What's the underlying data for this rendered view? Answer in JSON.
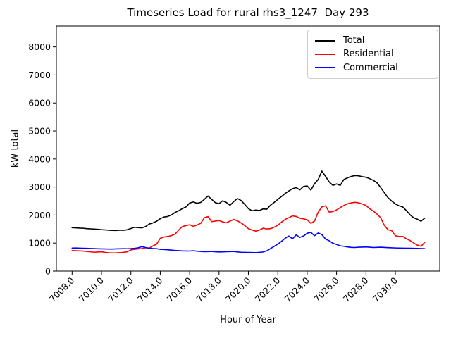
{
  "chart_data": {
    "type": "line",
    "title": "Timeseries Load for rural rhs3_1247  Day 293",
    "xlabel": "Hour of Year",
    "ylabel": "kW total",
    "xlim": [
      7006.93,
      7033.02
    ],
    "ylim": [
      0,
      8745
    ],
    "grid": false,
    "legend_position": "upper right",
    "xtick_values": [
      7008,
      7010,
      7012,
      7014,
      7016,
      7018,
      7020,
      7022,
      7024,
      7026,
      7028,
      7030
    ],
    "xtick_labels": [
      "7008.0",
      "7010.0",
      "7012.0",
      "7014.0",
      "7016.0",
      "7018.0",
      "7020.0",
      "7022.0",
      "7024.0",
      "7026.0",
      "7028.0",
      "7030.0"
    ],
    "ytick_values": [
      0,
      1000,
      2000,
      3000,
      4000,
      5000,
      6000,
      7000,
      8000
    ],
    "ytick_labels": [
      "0",
      "1000",
      "2000",
      "3000",
      "4000",
      "5000",
      "6000",
      "7000",
      "8000"
    ],
    "series": [
      {
        "name": "Total",
        "color": "#000000",
        "points": [
          [
            7008.0,
            1550
          ],
          [
            7008.25,
            1545
          ],
          [
            7008.5,
            1535
          ],
          [
            7008.75,
            1530
          ],
          [
            7009.0,
            1515
          ],
          [
            7009.25,
            1508
          ],
          [
            7009.5,
            1500
          ],
          [
            7009.75,
            1492
          ],
          [
            7010.0,
            1478
          ],
          [
            7010.25,
            1470
          ],
          [
            7010.5,
            1458
          ],
          [
            7010.75,
            1452
          ],
          [
            7011.0,
            1448
          ],
          [
            7011.25,
            1462
          ],
          [
            7011.5,
            1455
          ],
          [
            7011.75,
            1475
          ],
          [
            7012.0,
            1520
          ],
          [
            7012.25,
            1565
          ],
          [
            7012.5,
            1552
          ],
          [
            7012.75,
            1545
          ],
          [
            7013.0,
            1590
          ],
          [
            7013.25,
            1680
          ],
          [
            7013.5,
            1720
          ],
          [
            7013.75,
            1780
          ],
          [
            7014.0,
            1870
          ],
          [
            7014.25,
            1930
          ],
          [
            7014.5,
            1950
          ],
          [
            7014.75,
            2000
          ],
          [
            7015.0,
            2090
          ],
          [
            7015.25,
            2150
          ],
          [
            7015.5,
            2230
          ],
          [
            7015.75,
            2290
          ],
          [
            7016.0,
            2430
          ],
          [
            7016.25,
            2470
          ],
          [
            7016.5,
            2420
          ],
          [
            7016.75,
            2450
          ],
          [
            7017.0,
            2560
          ],
          [
            7017.25,
            2680
          ],
          [
            7017.5,
            2560
          ],
          [
            7017.75,
            2440
          ],
          [
            7018.0,
            2410
          ],
          [
            7018.25,
            2510
          ],
          [
            7018.5,
            2450
          ],
          [
            7018.75,
            2350
          ],
          [
            7019.0,
            2480
          ],
          [
            7019.25,
            2590
          ],
          [
            7019.5,
            2520
          ],
          [
            7019.75,
            2380
          ],
          [
            7020.0,
            2230
          ],
          [
            7020.25,
            2150
          ],
          [
            7020.5,
            2180
          ],
          [
            7020.75,
            2160
          ],
          [
            7021.0,
            2220
          ],
          [
            7021.25,
            2210
          ],
          [
            7021.5,
            2350
          ],
          [
            7021.75,
            2450
          ],
          [
            7022.0,
            2560
          ],
          [
            7022.25,
            2660
          ],
          [
            7022.5,
            2770
          ],
          [
            7022.75,
            2860
          ],
          [
            7023.0,
            2940
          ],
          [
            7023.25,
            2980
          ],
          [
            7023.5,
            2900
          ],
          [
            7023.75,
            3020
          ],
          [
            7024.0,
            3040
          ],
          [
            7024.25,
            2890
          ],
          [
            7024.5,
            3120
          ],
          [
            7024.75,
            3270
          ],
          [
            7025.0,
            3570
          ],
          [
            7025.25,
            3380
          ],
          [
            7025.5,
            3180
          ],
          [
            7025.75,
            3060
          ],
          [
            7026.0,
            3110
          ],
          [
            7026.25,
            3060
          ],
          [
            7026.5,
            3270
          ],
          [
            7026.75,
            3330
          ],
          [
            7027.0,
            3380
          ],
          [
            7027.25,
            3410
          ],
          [
            7027.5,
            3400
          ],
          [
            7027.75,
            3370
          ],
          [
            7028.0,
            3350
          ],
          [
            7028.25,
            3300
          ],
          [
            7028.5,
            3240
          ],
          [
            7028.75,
            3150
          ],
          [
            7029.0,
            2980
          ],
          [
            7029.25,
            2800
          ],
          [
            7029.5,
            2620
          ],
          [
            7029.75,
            2500
          ],
          [
            7030.0,
            2400
          ],
          [
            7030.25,
            2330
          ],
          [
            7030.5,
            2290
          ],
          [
            7030.75,
            2160
          ],
          [
            7031.0,
            2010
          ],
          [
            7031.25,
            1900
          ],
          [
            7031.5,
            1850
          ],
          [
            7031.75,
            1780
          ],
          [
            7032.0,
            1890
          ]
        ]
      },
      {
        "name": "Residential",
        "color": "#ff0000",
        "points": [
          [
            7008.0,
            735
          ],
          [
            7008.25,
            728
          ],
          [
            7008.5,
            722
          ],
          [
            7008.75,
            715
          ],
          [
            7009.0,
            702
          ],
          [
            7009.25,
            688
          ],
          [
            7009.5,
            672
          ],
          [
            7009.75,
            682
          ],
          [
            7010.0,
            690
          ],
          [
            7010.25,
            668
          ],
          [
            7010.5,
            652
          ],
          [
            7010.75,
            645
          ],
          [
            7011.0,
            650
          ],
          [
            7011.25,
            657
          ],
          [
            7011.5,
            667
          ],
          [
            7011.75,
            690
          ],
          [
            7012.0,
            755
          ],
          [
            7012.25,
            778
          ],
          [
            7012.5,
            792
          ],
          [
            7012.75,
            802
          ],
          [
            7013.0,
            832
          ],
          [
            7013.25,
            820
          ],
          [
            7013.5,
            900
          ],
          [
            7013.75,
            960
          ],
          [
            7014.0,
            1170
          ],
          [
            7014.25,
            1215
          ],
          [
            7014.5,
            1235
          ],
          [
            7014.75,
            1265
          ],
          [
            7015.0,
            1315
          ],
          [
            7015.25,
            1460
          ],
          [
            7015.5,
            1590
          ],
          [
            7015.75,
            1625
          ],
          [
            7016.0,
            1655
          ],
          [
            7016.25,
            1595
          ],
          [
            7016.5,
            1645
          ],
          [
            7016.75,
            1705
          ],
          [
            7017.0,
            1905
          ],
          [
            7017.25,
            1945
          ],
          [
            7017.5,
            1765
          ],
          [
            7017.75,
            1785
          ],
          [
            7018.0,
            1805
          ],
          [
            7018.25,
            1755
          ],
          [
            7018.5,
            1725
          ],
          [
            7018.75,
            1785
          ],
          [
            7019.0,
            1845
          ],
          [
            7019.25,
            1795
          ],
          [
            7019.5,
            1720
          ],
          [
            7019.75,
            1625
          ],
          [
            7020.0,
            1515
          ],
          [
            7020.25,
            1465
          ],
          [
            7020.5,
            1425
          ],
          [
            7020.75,
            1465
          ],
          [
            7021.0,
            1530
          ],
          [
            7021.25,
            1505
          ],
          [
            7021.5,
            1515
          ],
          [
            7021.75,
            1565
          ],
          [
            7022.0,
            1635
          ],
          [
            7022.25,
            1745
          ],
          [
            7022.5,
            1845
          ],
          [
            7022.75,
            1905
          ],
          [
            7023.0,
            1970
          ],
          [
            7023.25,
            1950
          ],
          [
            7023.5,
            1890
          ],
          [
            7023.75,
            1865
          ],
          [
            7024.0,
            1830
          ],
          [
            7024.25,
            1705
          ],
          [
            7024.5,
            1785
          ],
          [
            7024.75,
            2105
          ],
          [
            7025.0,
            2290
          ],
          [
            7025.25,
            2330
          ],
          [
            7025.5,
            2105
          ],
          [
            7025.75,
            2125
          ],
          [
            7026.0,
            2185
          ],
          [
            7026.25,
            2265
          ],
          [
            7026.5,
            2345
          ],
          [
            7026.75,
            2405
          ],
          [
            7027.0,
            2435
          ],
          [
            7027.25,
            2455
          ],
          [
            7027.5,
            2435
          ],
          [
            7027.75,
            2395
          ],
          [
            7028.0,
            2345
          ],
          [
            7028.25,
            2225
          ],
          [
            7028.5,
            2145
          ],
          [
            7028.75,
            2035
          ],
          [
            7029.0,
            1905
          ],
          [
            7029.25,
            1635
          ],
          [
            7029.5,
            1475
          ],
          [
            7029.75,
            1445
          ],
          [
            7030.0,
            1265
          ],
          [
            7030.25,
            1235
          ],
          [
            7030.5,
            1235
          ],
          [
            7030.75,
            1155
          ],
          [
            7031.0,
            1090
          ],
          [
            7031.25,
            1005
          ],
          [
            7031.5,
            925
          ],
          [
            7031.75,
            885
          ],
          [
            7032.0,
            1030
          ]
        ]
      },
      {
        "name": "Commercial",
        "color": "#0000ff",
        "points": [
          [
            7008.0,
            822
          ],
          [
            7008.25,
            826
          ],
          [
            7008.5,
            820
          ],
          [
            7008.75,
            816
          ],
          [
            7009.0,
            812
          ],
          [
            7009.25,
            806
          ],
          [
            7009.5,
            802
          ],
          [
            7009.75,
            796
          ],
          [
            7010.0,
            792
          ],
          [
            7010.25,
            790
          ],
          [
            7010.5,
            786
          ],
          [
            7010.75,
            788
          ],
          [
            7011.0,
            792
          ],
          [
            7011.25,
            796
          ],
          [
            7011.5,
            800
          ],
          [
            7011.75,
            798
          ],
          [
            7012.0,
            802
          ],
          [
            7012.25,
            812
          ],
          [
            7012.5,
            832
          ],
          [
            7012.75,
            875
          ],
          [
            7013.0,
            842
          ],
          [
            7013.25,
            816
          ],
          [
            7013.5,
            806
          ],
          [
            7013.75,
            800
          ],
          [
            7014.0,
            776
          ],
          [
            7014.25,
            770
          ],
          [
            7014.5,
            762
          ],
          [
            7014.75,
            750
          ],
          [
            7015.0,
            736
          ],
          [
            7015.25,
            730
          ],
          [
            7015.5,
            722
          ],
          [
            7015.75,
            718
          ],
          [
            7016.0,
            716
          ],
          [
            7016.25,
            726
          ],
          [
            7016.5,
            712
          ],
          [
            7016.75,
            700
          ],
          [
            7017.0,
            692
          ],
          [
            7017.25,
            696
          ],
          [
            7017.5,
            702
          ],
          [
            7017.75,
            690
          ],
          [
            7018.0,
            682
          ],
          [
            7018.25,
            686
          ],
          [
            7018.5,
            692
          ],
          [
            7018.75,
            696
          ],
          [
            7019.0,
            702
          ],
          [
            7019.25,
            682
          ],
          [
            7019.5,
            672
          ],
          [
            7019.75,
            668
          ],
          [
            7020.0,
            666
          ],
          [
            7020.25,
            662
          ],
          [
            7020.5,
            660
          ],
          [
            7020.75,
            668
          ],
          [
            7021.0,
            682
          ],
          [
            7021.25,
            722
          ],
          [
            7021.5,
            802
          ],
          [
            7021.75,
            882
          ],
          [
            7022.0,
            962
          ],
          [
            7022.25,
            1062
          ],
          [
            7022.5,
            1172
          ],
          [
            7022.75,
            1252
          ],
          [
            7023.0,
            1152
          ],
          [
            7023.25,
            1292
          ],
          [
            7023.5,
            1202
          ],
          [
            7023.75,
            1252
          ],
          [
            7024.0,
            1352
          ],
          [
            7024.25,
            1382
          ],
          [
            7024.5,
            1262
          ],
          [
            7024.75,
            1362
          ],
          [
            7025.0,
            1302
          ],
          [
            7025.25,
            1142
          ],
          [
            7025.5,
            1082
          ],
          [
            7025.75,
            992
          ],
          [
            7026.0,
            952
          ],
          [
            7026.25,
            902
          ],
          [
            7026.5,
            886
          ],
          [
            7026.75,
            862
          ],
          [
            7027.0,
            846
          ],
          [
            7027.25,
            842
          ],
          [
            7027.5,
            852
          ],
          [
            7027.75,
            856
          ],
          [
            7028.0,
            862
          ],
          [
            7028.25,
            852
          ],
          [
            7028.5,
            842
          ],
          [
            7029.0,
            852
          ],
          [
            7029.5,
            836
          ],
          [
            7030.0,
            826
          ],
          [
            7030.5,
            820
          ],
          [
            7031.0,
            814
          ],
          [
            7031.5,
            810
          ],
          [
            7032.0,
            800
          ]
        ]
      }
    ]
  }
}
